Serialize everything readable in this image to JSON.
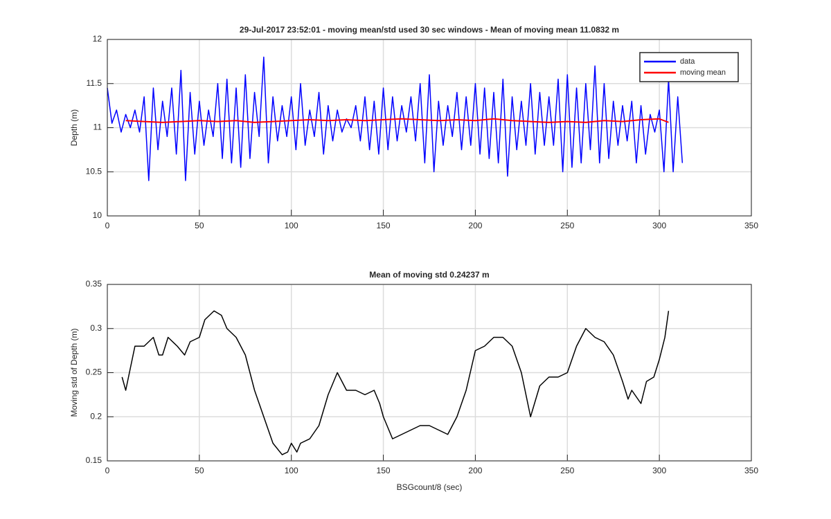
{
  "chart_data": [
    {
      "type": "line",
      "title": "29-Jul-2017 23:52:01 - moving mean/std used 30 sec windows - Mean of moving mean 11.0832 m",
      "y_label": "Depth (m)",
      "xlim": [
        0,
        350
      ],
      "xticks": [
        0,
        50,
        100,
        150,
        200,
        250,
        300,
        350
      ],
      "ylim": [
        10,
        12
      ],
      "yticks": [
        10,
        10.5,
        11,
        11.5,
        12
      ],
      "grid": true,
      "legend": "northeast",
      "series": [
        {
          "name": "data",
          "color": "#0000ff",
          "x": [
            0,
            2.5,
            5,
            7.5,
            10,
            12.5,
            15,
            17.5,
            20,
            22.5,
            25,
            27.5,
            30,
            32.5,
            35,
            37.5,
            40,
            42.5,
            45,
            47.5,
            50,
            52.5,
            55,
            57.5,
            60,
            62.5,
            65,
            67.5,
            70,
            72.5,
            75,
            77.5,
            80,
            82.5,
            85,
            87.5,
            90,
            92.5,
            95,
            97.5,
            100,
            102.5,
            105,
            107.5,
            110,
            112.5,
            115,
            117.5,
            120,
            122.5,
            125,
            127.5,
            130,
            132.5,
            135,
            137.5,
            140,
            142.5,
            145,
            147.5,
            150,
            152.5,
            155,
            157.5,
            160,
            162.5,
            165,
            167.5,
            170,
            172.5,
            175,
            177.5,
            180,
            182.5,
            185,
            187.5,
            190,
            192.5,
            195,
            197.5,
            200,
            202.5,
            205,
            207.5,
            210,
            212.5,
            215,
            217.5,
            220,
            222.5,
            225,
            227.5,
            230,
            232.5,
            235,
            237.5,
            240,
            242.5,
            245,
            247.5,
            250,
            252.5,
            255,
            257.5,
            260,
            262.5,
            265,
            267.5,
            270,
            272.5,
            275,
            277.5,
            280,
            282.5,
            285,
            287.5,
            290,
            292.5,
            295,
            297.5,
            300,
            302.5,
            305,
            307.5,
            310,
            312.5
          ],
          "values": [
            11.45,
            11.05,
            11.2,
            10.95,
            11.15,
            11.0,
            11.2,
            10.95,
            11.35,
            10.4,
            11.45,
            10.75,
            11.3,
            10.9,
            11.45,
            10.7,
            11.65,
            10.4,
            11.4,
            10.7,
            11.3,
            10.8,
            11.2,
            10.9,
            11.5,
            10.65,
            11.55,
            10.6,
            11.45,
            10.55,
            11.6,
            10.65,
            11.4,
            10.9,
            11.8,
            10.6,
            11.35,
            10.85,
            11.25,
            10.9,
            11.35,
            10.75,
            11.5,
            10.8,
            11.2,
            10.9,
            11.4,
            10.7,
            11.25,
            10.85,
            11.2,
            10.95,
            11.1,
            11.0,
            11.25,
            10.85,
            11.35,
            10.75,
            11.3,
            10.7,
            11.45,
            10.75,
            11.35,
            10.85,
            11.25,
            10.95,
            11.35,
            10.85,
            11.5,
            10.6,
            11.6,
            10.5,
            11.3,
            10.8,
            11.25,
            10.9,
            11.4,
            10.75,
            11.35,
            10.8,
            11.5,
            10.7,
            11.45,
            10.65,
            11.4,
            10.6,
            11.55,
            10.45,
            11.35,
            10.75,
            11.3,
            10.8,
            11.5,
            10.7,
            11.4,
            10.8,
            11.35,
            10.8,
            11.55,
            10.5,
            11.6,
            10.55,
            11.45,
            10.6,
            11.5,
            10.75,
            11.7,
            10.6,
            11.5,
            10.65,
            11.3,
            10.8,
            11.25,
            10.85,
            11.3,
            10.6,
            11.25,
            10.7,
            11.15,
            10.95,
            11.2,
            10.5,
            11.55,
            10.5,
            11.35,
            10.6
          ]
        },
        {
          "name": "moving mean",
          "color": "#ff0000",
          "x": [
            10,
            20,
            30,
            40,
            50,
            60,
            70,
            80,
            90,
            100,
            110,
            120,
            130,
            140,
            150,
            160,
            170,
            180,
            190,
            200,
            210,
            220,
            230,
            240,
            250,
            260,
            270,
            280,
            290,
            300,
            305
          ],
          "values": [
            11.08,
            11.07,
            11.06,
            11.07,
            11.08,
            11.07,
            11.08,
            11.06,
            11.07,
            11.08,
            11.09,
            11.08,
            11.09,
            11.08,
            11.09,
            11.1,
            11.09,
            11.08,
            11.09,
            11.08,
            11.1,
            11.08,
            11.07,
            11.06,
            11.07,
            11.06,
            11.08,
            11.07,
            11.09,
            11.1,
            11.06
          ]
        }
      ]
    },
    {
      "type": "line",
      "title": "Mean of moving std 0.24237 m",
      "x_label": "BSGcount/8 (sec)",
      "y_label": "Moving std of Depth (m)",
      "xlim": [
        0,
        350
      ],
      "xticks": [
        0,
        50,
        100,
        150,
        200,
        250,
        300,
        350
      ],
      "ylim": [
        0.15,
        0.35
      ],
      "yticks": [
        0.15,
        0.2,
        0.25,
        0.3,
        0.35
      ],
      "grid": true,
      "series": [
        {
          "color": "#000000",
          "x": [
            8,
            10,
            13,
            15,
            20,
            25,
            28,
            30,
            33,
            38,
            42,
            45,
            50,
            53,
            58,
            62,
            65,
            70,
            75,
            80,
            85,
            90,
            95,
            98,
            100,
            103,
            105,
            110,
            115,
            120,
            125,
            130,
            135,
            140,
            145,
            148,
            150,
            155,
            160,
            165,
            170,
            175,
            180,
            185,
            190,
            195,
            200,
            205,
            210,
            215,
            220,
            225,
            230,
            235,
            240,
            245,
            250,
            255,
            260,
            265,
            270,
            275,
            280,
            283,
            285,
            290,
            293,
            297,
            300,
            303,
            305
          ],
          "values": [
            0.245,
            0.23,
            0.26,
            0.28,
            0.28,
            0.29,
            0.27,
            0.27,
            0.29,
            0.28,
            0.27,
            0.285,
            0.29,
            0.31,
            0.32,
            0.315,
            0.3,
            0.29,
            0.27,
            0.23,
            0.2,
            0.17,
            0.157,
            0.16,
            0.17,
            0.16,
            0.17,
            0.175,
            0.19,
            0.225,
            0.25,
            0.23,
            0.23,
            0.225,
            0.23,
            0.215,
            0.2,
            0.175,
            0.18,
            0.185,
            0.19,
            0.19,
            0.185,
            0.18,
            0.2,
            0.23,
            0.275,
            0.28,
            0.29,
            0.29,
            0.28,
            0.25,
            0.2,
            0.235,
            0.245,
            0.245,
            0.25,
            0.28,
            0.3,
            0.29,
            0.285,
            0.27,
            0.24,
            0.22,
            0.23,
            0.215,
            0.24,
            0.245,
            0.265,
            0.29,
            0.32
          ]
        }
      ]
    }
  ]
}
